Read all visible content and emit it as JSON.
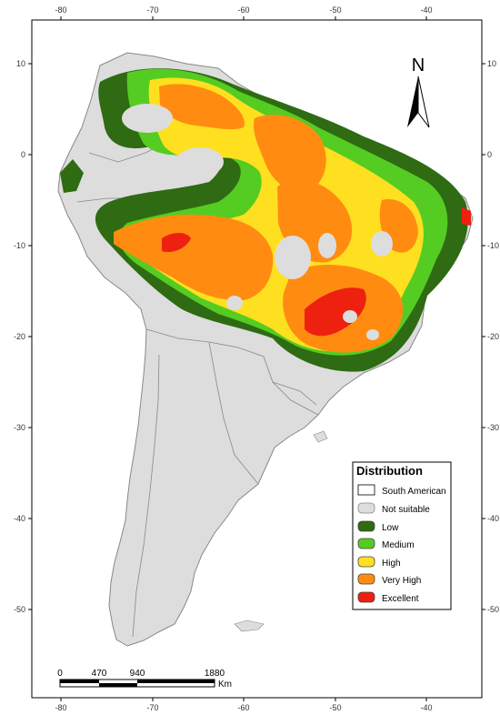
{
  "map": {
    "x_ticks": [
      "-80",
      "-70",
      "-60",
      "-50",
      "-40"
    ],
    "y_ticks": [
      "10",
      "0",
      "-10",
      "-20",
      "-30",
      "-40",
      "-50"
    ],
    "north_label": "N"
  },
  "legend": {
    "title": "Distribution",
    "items": [
      {
        "label": "South American",
        "color": "#ffffff"
      },
      {
        "label": "Not suitable",
        "color": "#dddddd"
      },
      {
        "label": "Low",
        "color": "#2e6b12"
      },
      {
        "label": "Medium",
        "color": "#55cc22"
      },
      {
        "label": "High",
        "color": "#ffe020"
      },
      {
        "label": "Very High",
        "color": "#ff8c10"
      },
      {
        "label": "Excellent",
        "color": "#ee2010"
      }
    ]
  },
  "scale_bar": {
    "labels": [
      "0",
      "470",
      "940",
      "1880"
    ],
    "unit": "Km"
  },
  "colors": {
    "land": "#dddddd",
    "border": "#888888",
    "low": "#2e6b12",
    "medium": "#55cc22",
    "high": "#ffe020",
    "very_high": "#ff8c10",
    "excellent": "#ee2010"
  }
}
